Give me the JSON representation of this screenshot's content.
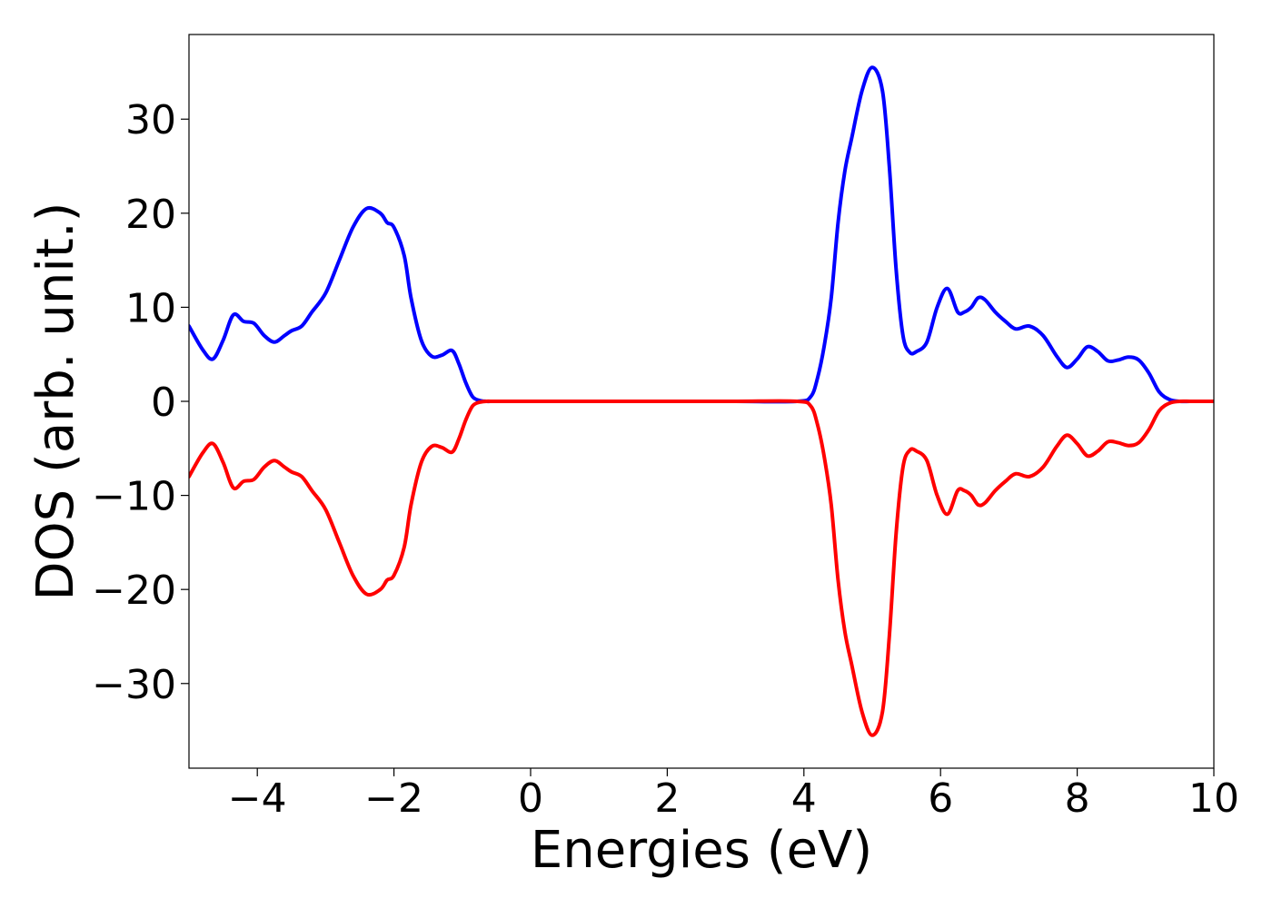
{
  "chart_data": {
    "type": "line",
    "title": "",
    "xlabel": "Energies (eV)",
    "ylabel": "DOS (arb. unit.)",
    "xlim": [
      -5,
      10
    ],
    "ylim": [
      -39,
      39
    ],
    "xticks": [
      -4,
      -2,
      0,
      2,
      4,
      6,
      8,
      10
    ],
    "yticks": [
      -30,
      -20,
      -10,
      0,
      10,
      20,
      30
    ],
    "xtick_labels": [
      "−4",
      "−2",
      "0",
      "2",
      "4",
      "6",
      "8",
      "10"
    ],
    "ytick_labels": [
      "−30",
      "−20",
      "−10",
      "0",
      "10",
      "20",
      "30"
    ],
    "grid": false,
    "legend": "none",
    "x": [
      -5.0,
      -4.8,
      -4.65,
      -4.5,
      -4.35,
      -4.2,
      -4.05,
      -3.9,
      -3.75,
      -3.6,
      -3.5,
      -3.35,
      -3.2,
      -3.0,
      -2.8,
      -2.6,
      -2.4,
      -2.2,
      -2.1,
      -2.0,
      -1.85,
      -1.75,
      -1.6,
      -1.45,
      -1.3,
      -1.15,
      -1.05,
      -0.95,
      -0.85,
      -0.75,
      -0.65,
      -0.55,
      -0.4,
      0.0,
      1.0,
      2.0,
      3.0,
      3.9,
      4.1,
      4.2,
      4.3,
      4.4,
      4.5,
      4.6,
      4.7,
      4.85,
      5.0,
      5.15,
      5.25,
      5.35,
      5.45,
      5.55,
      5.65,
      5.8,
      5.95,
      6.1,
      6.25,
      6.35,
      6.45,
      6.55,
      6.65,
      6.8,
      6.95,
      7.1,
      7.3,
      7.5,
      7.7,
      7.85,
      8.0,
      8.15,
      8.3,
      8.45,
      8.6,
      8.75,
      8.9,
      9.05,
      9.2,
      9.35,
      9.5,
      9.65,
      9.8,
      10.0
    ],
    "series": [
      {
        "color": "#0000ff",
        "values": [
          8.0,
          5.5,
          4.5,
          6.5,
          9.2,
          8.5,
          8.3,
          7.0,
          6.3,
          7.0,
          7.5,
          8.0,
          9.5,
          11.5,
          15.0,
          18.5,
          20.5,
          20.0,
          19.0,
          18.5,
          15.5,
          11.0,
          6.5,
          4.8,
          4.9,
          5.4,
          4.0,
          2.0,
          0.5,
          0.1,
          0.0,
          0.0,
          0.0,
          0.0,
          0.0,
          0.0,
          0.0,
          0.0,
          0.5,
          2.5,
          6.0,
          11.0,
          19.0,
          24.5,
          28.0,
          33.0,
          35.5,
          33.0,
          25.0,
          14.0,
          7.0,
          5.2,
          5.3,
          6.3,
          10.0,
          12.0,
          9.5,
          9.5,
          10.0,
          11.0,
          10.8,
          9.5,
          8.5,
          7.7,
          8.0,
          7.0,
          4.8,
          3.6,
          4.5,
          5.8,
          5.3,
          4.3,
          4.4,
          4.7,
          4.4,
          3.0,
          1.0,
          0.2,
          0.0,
          0.0,
          0.0,
          0.0
        ]
      },
      {
        "color": "#ff0000",
        "values": [
          -8.0,
          -5.5,
          -4.5,
          -6.5,
          -9.2,
          -8.5,
          -8.3,
          -7.0,
          -6.3,
          -7.0,
          -7.5,
          -8.0,
          -9.5,
          -11.5,
          -15.0,
          -18.5,
          -20.5,
          -20.0,
          -19.0,
          -18.5,
          -15.5,
          -11.0,
          -6.5,
          -4.8,
          -4.9,
          -5.4,
          -4.0,
          -2.0,
          -0.5,
          -0.1,
          0.0,
          0.0,
          0.0,
          0.0,
          0.0,
          0.0,
          0.0,
          0.0,
          -0.5,
          -2.5,
          -6.0,
          -11.0,
          -19.0,
          -24.5,
          -28.0,
          -33.0,
          -35.5,
          -33.0,
          -25.0,
          -14.0,
          -7.0,
          -5.2,
          -5.3,
          -6.3,
          -10.0,
          -12.0,
          -9.5,
          -9.5,
          -10.0,
          -11.0,
          -10.8,
          -9.5,
          -8.5,
          -7.7,
          -8.0,
          -7.0,
          -4.8,
          -3.6,
          -4.5,
          -5.8,
          -5.3,
          -4.3,
          -4.4,
          -4.7,
          -4.4,
          -3.0,
          -1.0,
          -0.2,
          0.0,
          0.0,
          0.0,
          0.0
        ]
      }
    ]
  }
}
